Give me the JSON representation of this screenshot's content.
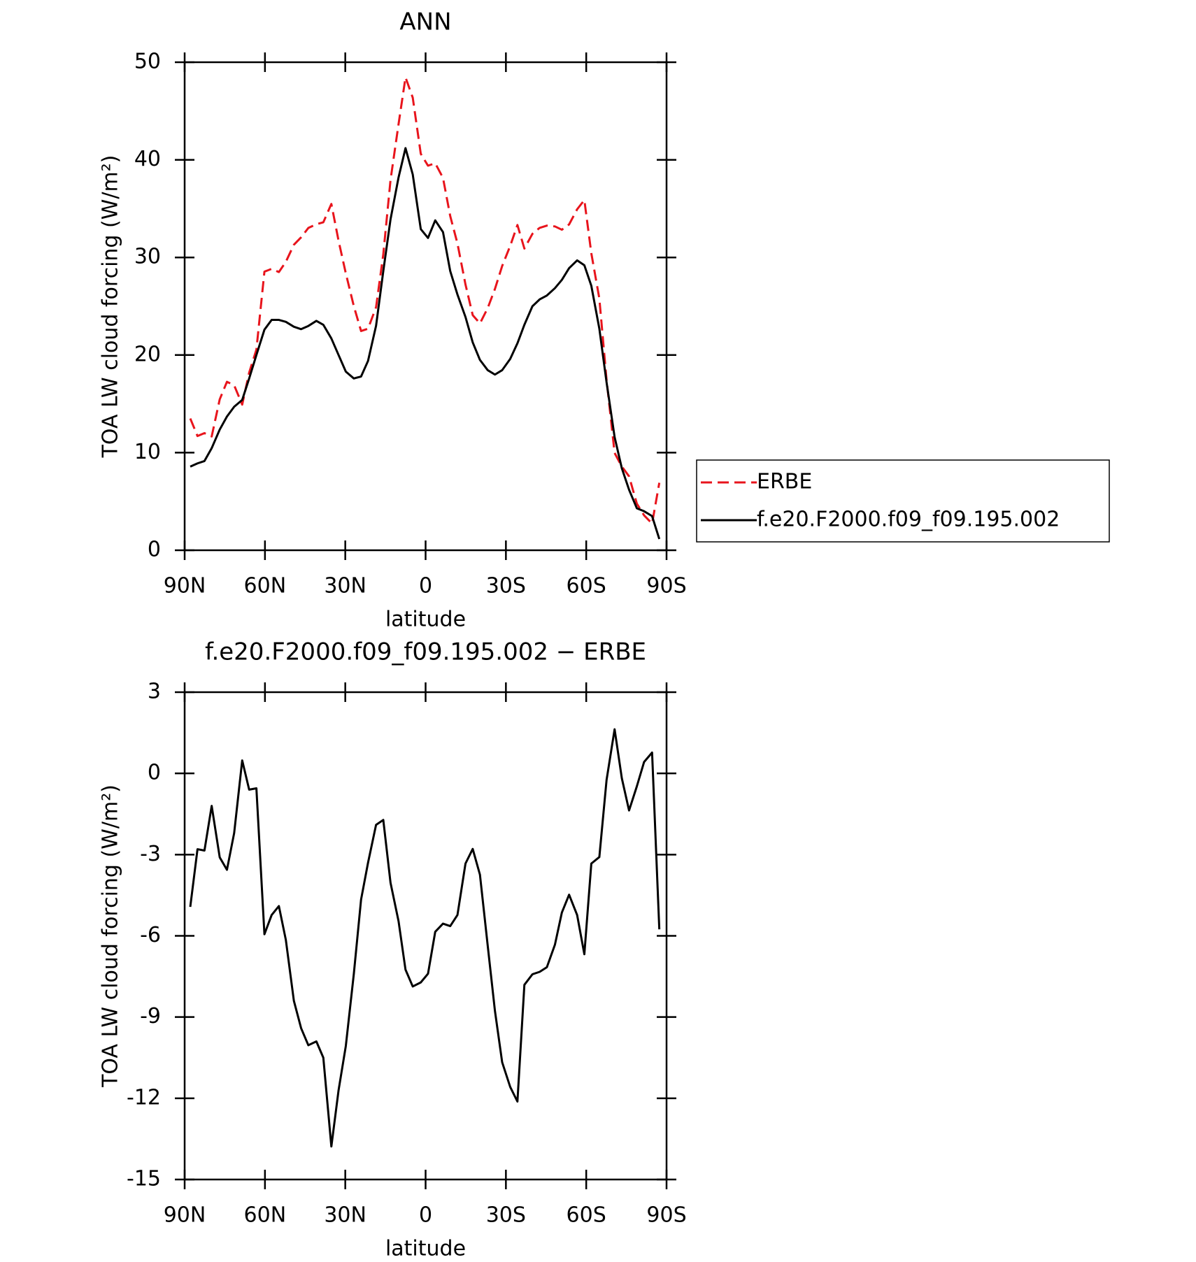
{
  "chart_data": [
    {
      "type": "line",
      "title": "ANN",
      "xlabel": "latitude",
      "ylabel": "TOA LW cloud forcing (W/m²)",
      "x": [
        87.9,
        85.2,
        82.6,
        79.9,
        76.9,
        74.2,
        71.5,
        68.5,
        65.9,
        63.2,
        60.2,
        57.5,
        54.8,
        52.2,
        49.2,
        46.5,
        43.8,
        40.8,
        38.2,
        35.2,
        32.5,
        29.8,
        26.8,
        24.1,
        21.5,
        18.5,
        15.8,
        13.1,
        10.1,
        7.5,
        4.8,
        1.8,
        -0.9,
        -3.6,
        -6.5,
        -9.2,
        -11.9,
        -14.9,
        -17.6,
        -20.3,
        -23.2,
        -25.9,
        -28.6,
        -31.6,
        -34.3,
        -36.9,
        -39.9,
        -42.6,
        -45.3,
        -48.3,
        -50.9,
        -53.6,
        -56.6,
        -59.3,
        -61.9,
        -64.9,
        -67.6,
        -70.6,
        -73.3,
        -76.0,
        -78.9,
        -81.6,
        -84.6,
        -87.3
      ],
      "series": [
        {
          "name": "ERBE",
          "color": "#e8141c",
          "linestyle": "dashed",
          "values": [
            13.5,
            11.7,
            12.0,
            11.66,
            15.46,
            17.26,
            16.9,
            14.92,
            18.2,
            20.55,
            28.54,
            28.83,
            28.5,
            29.55,
            31.3,
            32.06,
            33.02,
            33.4,
            33.6,
            35.48,
            31.7,
            28.37,
            25.0,
            22.46,
            22.7,
            24.9,
            30.32,
            37.94,
            43.66,
            48.45,
            46.37,
            40.62,
            39.4,
            39.65,
            38.15,
            34.24,
            31.43,
            27.23,
            24.09,
            23.24,
            24.81,
            26.77,
            29.12,
            31.18,
            33.32,
            30.91,
            32.42,
            33.03,
            33.26,
            33.18,
            32.84,
            33.38,
            34.93,
            35.88,
            30.43,
            25.79,
            17.44,
            9.97,
            8.58,
            7.57,
            4.78,
            3.58,
            2.73,
            6.91
          ]
        },
        {
          "name": "f.e20.F2000.f09_f09.195.002",
          "color": "#000000",
          "linestyle": "solid",
          "values": [
            8.57,
            8.9,
            9.14,
            10.46,
            12.36,
            13.7,
            14.7,
            15.4,
            17.6,
            20.0,
            22.6,
            23.6,
            23.6,
            23.4,
            22.9,
            22.65,
            22.98,
            23.5,
            23.1,
            21.7,
            20.0,
            18.3,
            17.6,
            17.8,
            19.4,
            23.0,
            28.6,
            33.9,
            38.2,
            41.2,
            38.5,
            32.9,
            32.0,
            33.8,
            32.6,
            28.6,
            26.2,
            23.9,
            21.3,
            19.5,
            18.45,
            18.0,
            18.45,
            19.6,
            21.2,
            23.1,
            25.0,
            25.7,
            26.1,
            26.85,
            27.7,
            28.9,
            29.7,
            29.2,
            27.1,
            22.7,
            17.2,
            11.6,
            8.4,
            6.2,
            4.3,
            4.0,
            3.5,
            1.15
          ]
        }
      ],
      "xlim": [
        90,
        -90
      ],
      "xticks": [
        {
          "value": 90,
          "label": "90N"
        },
        {
          "value": 60,
          "label": "60N"
        },
        {
          "value": 30,
          "label": "30N"
        },
        0,
        {
          "value": -30,
          "label": "30S"
        },
        {
          "value": -60,
          "label": "60S"
        },
        {
          "value": -90,
          "label": "90S"
        }
      ],
      "ylim": [
        0,
        50
      ],
      "yticks": [
        0,
        10,
        20,
        30,
        40,
        50
      ],
      "legend": "right"
    },
    {
      "type": "line",
      "title": "f.e20.F2000.f09_f09.195.002 − ERBE",
      "xlabel": "latitude",
      "ylabel": "TOA LW cloud forcing (W/m²)",
      "x": [
        87.9,
        85.2,
        82.6,
        79.9,
        76.9,
        74.2,
        71.5,
        68.5,
        65.9,
        63.2,
        60.2,
        57.5,
        54.8,
        52.2,
        49.2,
        46.5,
        43.8,
        40.8,
        38.2,
        35.2,
        32.5,
        29.8,
        26.8,
        24.1,
        21.5,
        18.5,
        15.8,
        13.1,
        10.1,
        7.5,
        4.8,
        1.8,
        -0.9,
        -3.6,
        -6.5,
        -9.2,
        -11.9,
        -14.9,
        -17.6,
        -20.3,
        -23.2,
        -25.9,
        -28.6,
        -31.6,
        -34.3,
        -36.9,
        -39.9,
        -42.6,
        -45.3,
        -48.3,
        -50.9,
        -53.6,
        -56.6,
        -59.3,
        -61.9,
        -64.9,
        -67.6,
        -70.6,
        -73.3,
        -76.0,
        -78.9,
        -81.6,
        -84.6,
        -87.3
      ],
      "values": [
        -4.93,
        -2.8,
        -2.85,
        -1.2,
        -3.1,
        -3.56,
        -2.2,
        0.48,
        -0.6,
        -0.55,
        -5.94,
        -5.23,
        -4.9,
        -6.15,
        -8.4,
        -9.41,
        -10.04,
        -9.9,
        -10.5,
        -13.78,
        -11.7,
        -10.07,
        -7.4,
        -4.66,
        -3.3,
        -1.9,
        -1.72,
        -4.04,
        -5.46,
        -7.25,
        -7.87,
        -7.72,
        -7.4,
        -5.85,
        -5.55,
        -5.64,
        -5.23,
        -3.33,
        -2.79,
        -3.74,
        -6.36,
        -8.77,
        -10.67,
        -11.58,
        -12.12,
        -7.81,
        -7.42,
        -7.33,
        -7.16,
        -6.33,
        -5.14,
        -4.48,
        -5.23,
        -6.68,
        -3.33,
        -3.09,
        -0.24,
        1.63,
        -0.18,
        -1.37,
        -0.48,
        0.42,
        0.77,
        -5.76
      ],
      "color": "#000000",
      "xlim": [
        90,
        -90
      ],
      "xticks": [
        {
          "value": 90,
          "label": "90N"
        },
        {
          "value": 60,
          "label": "60N"
        },
        {
          "value": 30,
          "label": "30N"
        },
        0,
        {
          "value": -30,
          "label": "30S"
        },
        {
          "value": -60,
          "label": "60S"
        },
        {
          "value": -90,
          "label": "90S"
        }
      ],
      "ylim": [
        -15,
        3
      ],
      "yticks": [
        -15,
        -12,
        -9,
        -6,
        -3,
        0,
        3
      ]
    }
  ]
}
